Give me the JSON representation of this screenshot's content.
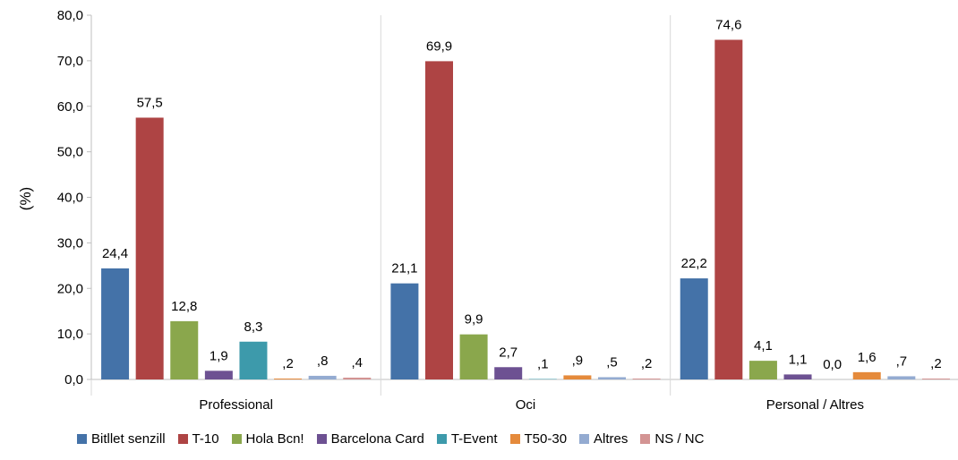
{
  "chart_data": {
    "type": "bar",
    "title": "",
    "xlabel": "",
    "ylabel": "(%)",
    "ylim": [
      0,
      80
    ],
    "yticks": [
      "0,0",
      "10,0",
      "20,0",
      "30,0",
      "40,0",
      "50,0",
      "60,0",
      "70,0",
      "80,0"
    ],
    "grid": false,
    "legend_position": "bottom",
    "categories": [
      "Professional",
      "Oci",
      "Personal / Altres"
    ],
    "series": [
      {
        "name": "Bitllet senzill",
        "color": "#4472a8",
        "values": [
          24.4,
          21.1,
          22.2
        ],
        "labels": [
          "24,4",
          "21,1",
          "22,2"
        ]
      },
      {
        "name": "T-10",
        "color": "#ae4444",
        "values": [
          57.5,
          69.9,
          74.6
        ],
        "labels": [
          "57,5",
          "69,9",
          "74,6"
        ]
      },
      {
        "name": "Hola Bcn!",
        "color": "#8aa74c",
        "values": [
          12.8,
          9.9,
          4.1
        ],
        "labels": [
          "12,8",
          "9,9",
          "4,1"
        ]
      },
      {
        "name": "Barcelona Card",
        "color": "#6d5192",
        "values": [
          1.9,
          2.7,
          1.1
        ],
        "labels": [
          "1,9",
          "2,7",
          "1,1"
        ]
      },
      {
        "name": "T-Event",
        "color": "#3d9aab",
        "values": [
          8.3,
          0.1,
          0.0
        ],
        "labels": [
          "8,3",
          ",1",
          "0,0"
        ]
      },
      {
        "name": "T50-30",
        "color": "#e58a3b",
        "values": [
          0.2,
          0.9,
          1.6
        ],
        "labels": [
          ",2",
          ",9",
          "1,6"
        ]
      },
      {
        "name": "Altres",
        "color": "#94abd1",
        "values": [
          0.8,
          0.5,
          0.7
        ],
        "labels": [
          ",8",
          ",5",
          ",7"
        ]
      },
      {
        "name": "NS / NC",
        "color": "#d39493",
        "values": [
          0.4,
          0.2,
          0.2
        ],
        "labels": [
          ",4",
          ",2",
          ",2"
        ]
      }
    ]
  }
}
